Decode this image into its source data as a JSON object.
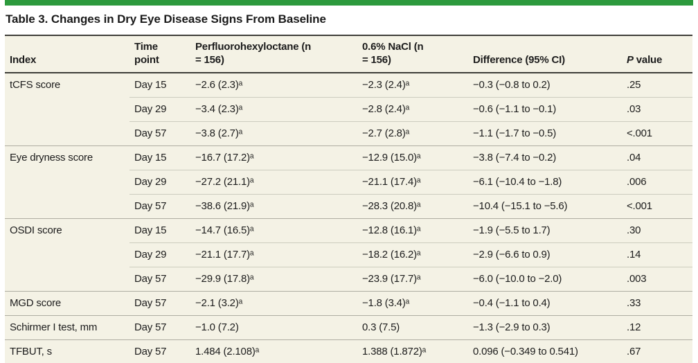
{
  "colors": {
    "accent_green": "#2d9a3d",
    "table_background": "#f4f2e5",
    "rule_dark": "#3d3d38"
  },
  "table": {
    "title": "Table 3. Changes in Dry Eye Disease Signs From Baseline",
    "columns": [
      "Index",
      "Time point",
      "Perfluorohexyloctane (n = 156)",
      "0.6% NaCl (n = 156)",
      "Difference (95% CI)",
      "P value"
    ],
    "groups": [
      {
        "index": "tCFS score",
        "rows": [
          {
            "time": "Day 15",
            "pfho": "−2.6 (2.3)ᵃ",
            "nacl": "−2.3 (2.4)ᵃ",
            "diff": "−0.3 (−0.8 to 0.2)",
            "p": ".25"
          },
          {
            "time": "Day 29",
            "pfho": "−3.4 (2.3)ᵃ",
            "nacl": "−2.8 (2.4)ᵃ",
            "diff": "−0.6 (−1.1 to −0.1)",
            "p": ".03"
          },
          {
            "time": "Day 57",
            "pfho": "−3.8 (2.7)ᵃ",
            "nacl": "−2.7 (2.8)ᵃ",
            "diff": "−1.1 (−1.7 to −0.5)",
            "p": "<.001"
          }
        ]
      },
      {
        "index": "Eye dryness score",
        "rows": [
          {
            "time": "Day 15",
            "pfho": "−16.7 (17.2)ᵃ",
            "nacl": "−12.9 (15.0)ᵃ",
            "diff": "−3.8 (−7.4 to −0.2)",
            "p": ".04"
          },
          {
            "time": "Day 29",
            "pfho": "−27.2 (21.1)ᵃ",
            "nacl": "−21.1 (17.4)ᵃ",
            "diff": "−6.1 (−10.4 to −1.8)",
            "p": ".006"
          },
          {
            "time": "Day 57",
            "pfho": "−38.6 (21.9)ᵃ",
            "nacl": "−28.3 (20.8)ᵃ",
            "diff": "−10.4 (−15.1 to −5.6)",
            "p": "<.001"
          }
        ]
      },
      {
        "index": "OSDI score",
        "rows": [
          {
            "time": "Day 15",
            "pfho": "−14.7 (16.5)ᵃ",
            "nacl": "−12.8 (16.1)ᵃ",
            "diff": "−1.9 (−5.5 to 1.7)",
            "p": ".30"
          },
          {
            "time": "Day 29",
            "pfho": "−21.1 (17.7)ᵃ",
            "nacl": "−18.2 (16.2)ᵃ",
            "diff": "−2.9 (−6.6 to 0.9)",
            "p": ".14"
          },
          {
            "time": "Day 57",
            "pfho": "−29.9 (17.8)ᵃ",
            "nacl": "−23.9 (17.7)ᵃ",
            "diff": "−6.0 (−10.0 to −2.0)",
            "p": ".003"
          }
        ]
      },
      {
        "index": "MGD score",
        "rows": [
          {
            "time": "Day 57",
            "pfho": "−2.1 (3.2)ᵃ",
            "nacl": "−1.8 (3.4)ᵃ",
            "diff": "−0.4 (−1.1 to 0.4)",
            "p": ".33"
          }
        ]
      },
      {
        "index": "Schirmer I test, mm",
        "rows": [
          {
            "time": "Day 57",
            "pfho": "−1.0 (7.2)",
            "nacl": "0.3 (7.5)",
            "diff": "−1.3 (−2.9 to 0.3)",
            "p": ".12"
          }
        ]
      },
      {
        "index": "TFBUT, s",
        "rows": [
          {
            "time": "Day 57",
            "pfho": "1.484 (2.108)ᵃ",
            "nacl": "1.388 (1.872)ᵃ",
            "diff": "0.096 (−0.349 to 0.541)",
            "p": ".67"
          }
        ]
      }
    ]
  }
}
